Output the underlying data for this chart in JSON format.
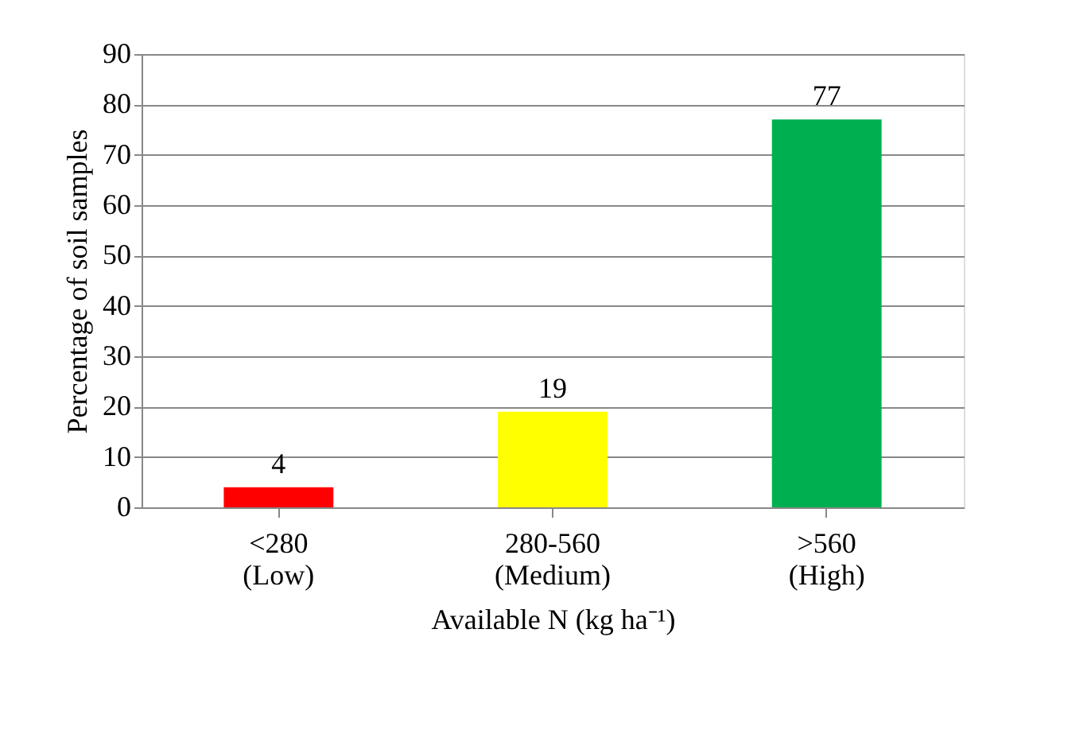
{
  "chart_data": {
    "type": "bar",
    "xlabel": "Available N (kg ha⁻¹)",
    "ylabel": "Percentage of soil samples",
    "categories": [
      "<280\n(Low)",
      "280-560\n(Medium)",
      ">560\n(High)"
    ],
    "values": [
      4,
      19,
      77
    ],
    "colors": [
      "#ff0000",
      "#ffff00",
      "#00b050"
    ],
    "ylim": [
      0,
      90
    ],
    "yticks": [
      0,
      10,
      20,
      30,
      40,
      50,
      60,
      70,
      80,
      90
    ],
    "grid": "y",
    "data_labels": true
  }
}
